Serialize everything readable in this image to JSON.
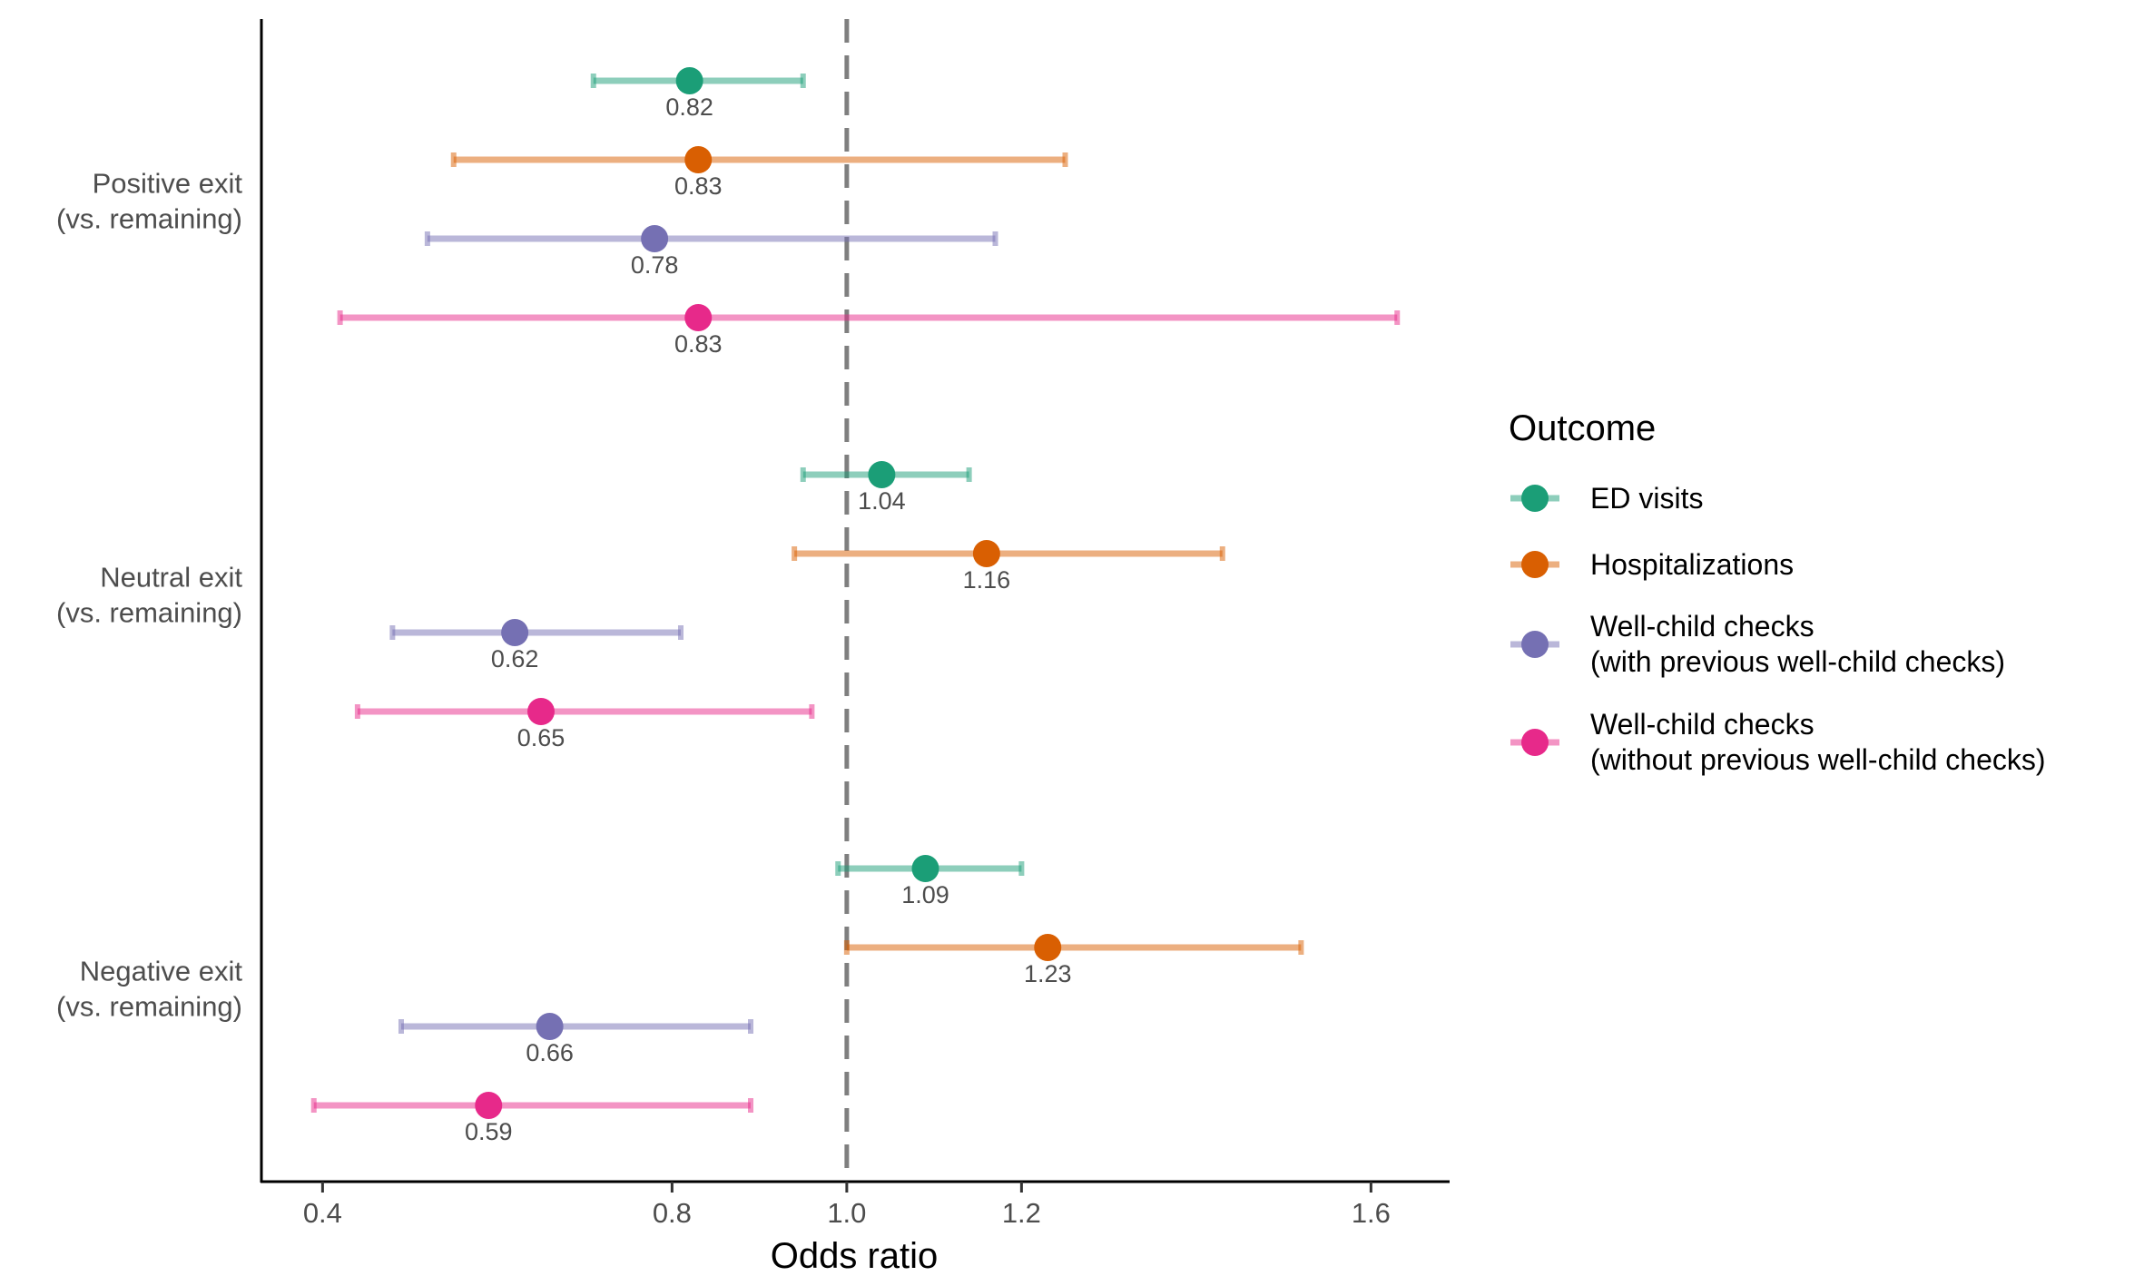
{
  "chart_data": {
    "type": "forest",
    "xlabel": "Odds ratio",
    "xlim": [
      0.33,
      1.69
    ],
    "xticks": [
      0.4,
      0.8,
      1.0,
      1.2,
      1.6
    ],
    "xtick_labels": [
      "0.4",
      "0.8",
      "1.0",
      "1.2",
      "1.6"
    ],
    "reference_line": 1.0,
    "groups": [
      {
        "label_line1": "Positive exit",
        "label_line2": "(vs. remaining)"
      },
      {
        "label_line1": "Neutral exit",
        "label_line2": "(vs. remaining)"
      },
      {
        "label_line1": "Negative exit",
        "label_line2": "(vs. remaining)"
      }
    ],
    "series": [
      {
        "name": "ED visits",
        "name_line2": "",
        "color": "#1B9E77",
        "estimates": [
          0.82,
          1.04,
          1.09
        ],
        "labels": [
          "0.82",
          "1.04",
          "1.09"
        ],
        "ci_low": [
          0.71,
          0.95,
          0.99
        ],
        "ci_high": [
          0.95,
          1.14,
          1.2
        ]
      },
      {
        "name": "Hospitalizations",
        "name_line2": "",
        "color": "#D95F02",
        "estimates": [
          0.83,
          1.16,
          1.23
        ],
        "labels": [
          "0.83",
          "1.16",
          "1.23"
        ],
        "ci_low": [
          0.55,
          0.94,
          1.0
        ],
        "ci_high": [
          1.25,
          1.43,
          1.52
        ]
      },
      {
        "name": "Well-child checks",
        "name_line2": "(with previous well-child checks)",
        "color": "#7570B3",
        "estimates": [
          0.78,
          0.62,
          0.66
        ],
        "labels": [
          "0.78",
          "0.62",
          "0.66"
        ],
        "ci_low": [
          0.52,
          0.48,
          0.49
        ],
        "ci_high": [
          1.17,
          0.81,
          0.89
        ]
      },
      {
        "name": "Well-child checks",
        "name_line2": "(without previous well-child checks)",
        "color": "#E7298A",
        "estimates": [
          0.83,
          0.65,
          0.59
        ],
        "labels": [
          "0.83",
          "0.65",
          "0.59"
        ],
        "ci_low": [
          0.42,
          0.44,
          0.39
        ],
        "ci_high": [
          1.63,
          0.96,
          0.89
        ]
      }
    ],
    "legend": {
      "title": "Outcome",
      "position": "right"
    },
    "grid": false
  }
}
